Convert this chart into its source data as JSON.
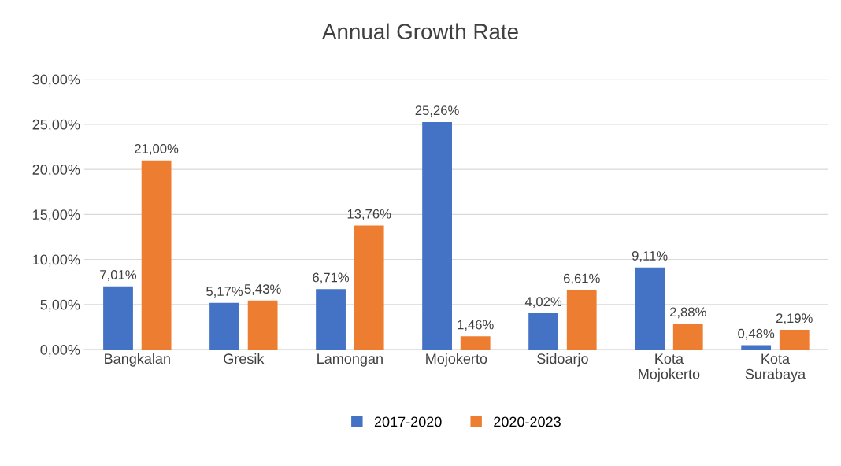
{
  "chart_data": {
    "type": "bar",
    "title": "Annual Growth Rate",
    "categories": [
      "Bangkalan",
      "Gresik",
      "Lamongan",
      "Mojokerto",
      "Sidoarjo",
      "Kota\nMojokerto",
      "Kota\nSurabaya"
    ],
    "series": [
      {
        "name": "2017-2020",
        "color": "#4472c4",
        "values": [
          7.01,
          5.17,
          6.71,
          25.26,
          4.02,
          9.11,
          0.48
        ],
        "value_labels": [
          "7,01%",
          "5,17%",
          "6,71%",
          "25,26%",
          "4,02%",
          "9,11%",
          "0,48%"
        ]
      },
      {
        "name": "2020-2023",
        "color": "#ed7d31",
        "values": [
          21.0,
          5.43,
          13.76,
          1.46,
          6.61,
          2.88,
          2.19
        ],
        "value_labels": [
          "21,00%",
          "5,43%",
          "13,76%",
          "1,46%",
          "6,61%",
          "2,88%",
          "2,19%"
        ]
      }
    ],
    "ylim": [
      0,
      30
    ],
    "yticks": [
      {
        "value": 0,
        "label": "0,00%"
      },
      {
        "value": 5,
        "label": "5,00%"
      },
      {
        "value": 10,
        "label": "10,00%"
      },
      {
        "value": 15,
        "label": "15,00%"
      },
      {
        "value": 20,
        "label": "20,00%"
      },
      {
        "value": 25,
        "label": "25,00%"
      },
      {
        "value": 30,
        "label": "30,00%"
      }
    ],
    "grid": "y",
    "legend": "bottom"
  }
}
